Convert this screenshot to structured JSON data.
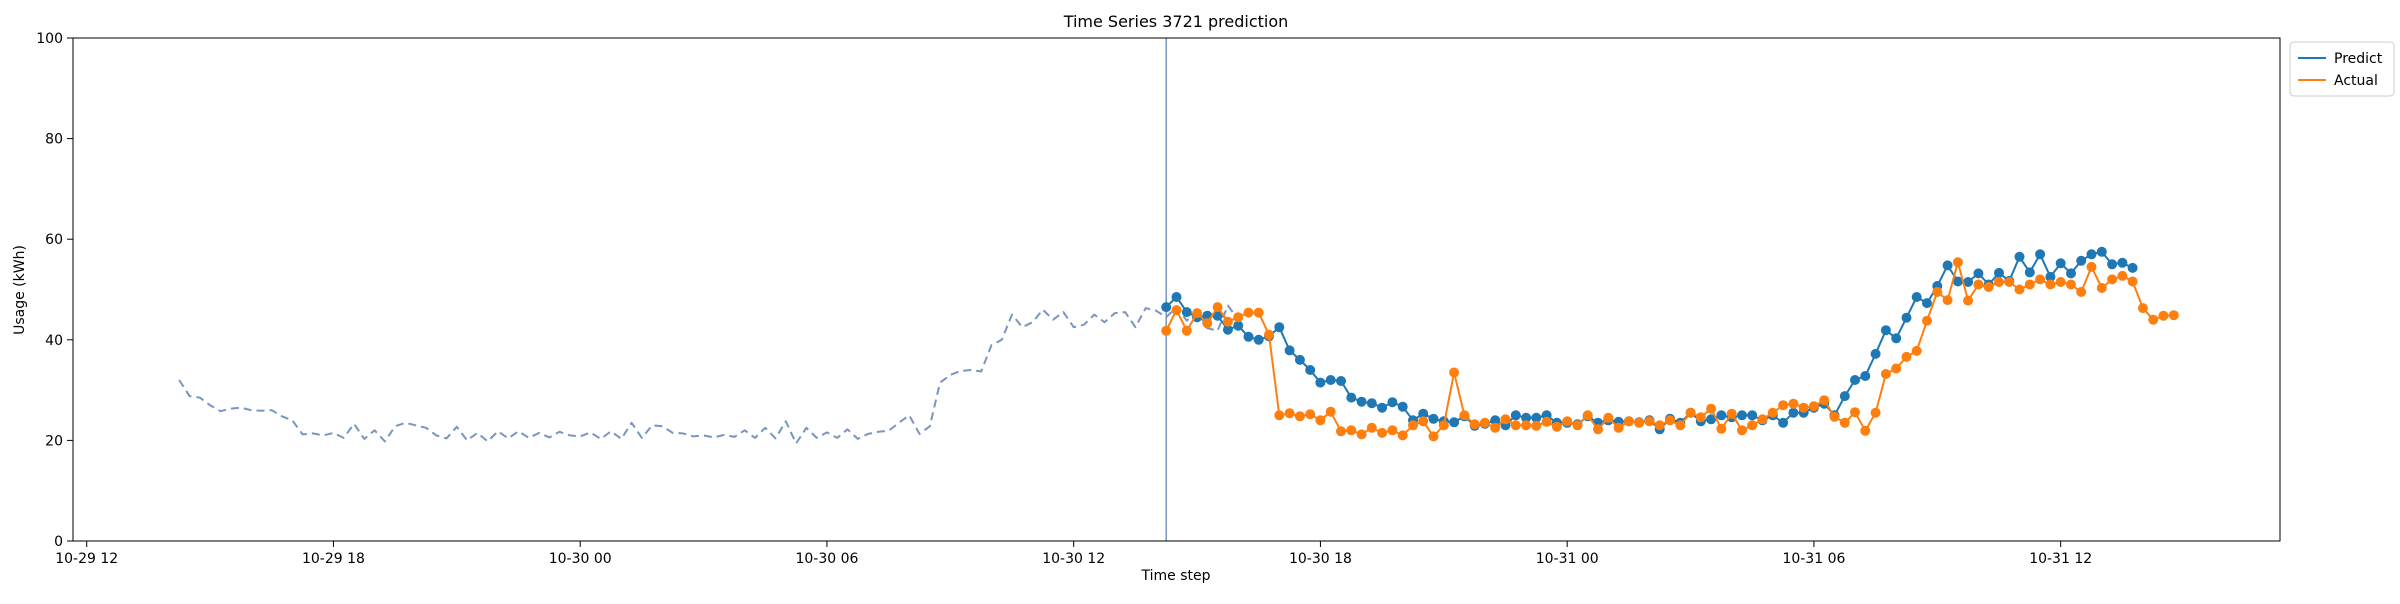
{
  "chart_data": {
    "type": "line",
    "title": "Time Series 3721 prediction",
    "xlabel": "Time step",
    "ylabel": "Usage (kWh)",
    "ylim": [
      0,
      100
    ],
    "xlim": [
      "2024-10-29T11:40",
      "2024-10-31T17:20"
    ],
    "y_ticks": [
      0,
      20,
      40,
      60,
      80,
      100
    ],
    "x_ticks": [
      {
        "value": "2024-10-29T12:00",
        "label": "10-29 12"
      },
      {
        "value": "2024-10-29T18:00",
        "label": "10-29 18"
      },
      {
        "value": "2024-10-30T00:00",
        "label": "10-30 00"
      },
      {
        "value": "2024-10-30T06:00",
        "label": "10-30 06"
      },
      {
        "value": "2024-10-30T12:00",
        "label": "10-30 12"
      },
      {
        "value": "2024-10-30T18:00",
        "label": "10-30 18"
      },
      {
        "value": "2024-10-31T00:00",
        "label": "10-31 00"
      },
      {
        "value": "2024-10-31T06:00",
        "label": "10-31 06"
      },
      {
        "value": "2024-10-31T12:00",
        "label": "10-31 12"
      }
    ],
    "grid": false,
    "legend_position": "top-right",
    "forecast_start": "2024-10-30T14:15",
    "series": [
      {
        "role": "history",
        "color": "#7896c0",
        "line_style": "dashed",
        "start": "2024-10-29T14:15",
        "step_minutes": 15,
        "values": [
          32.0,
          28.8,
          28.5,
          27.0,
          25.8,
          26.3,
          26.5,
          26.0,
          25.9,
          26.0,
          24.8,
          24.0,
          21.2,
          21.4,
          21.0,
          21.5,
          20.5,
          23.3,
          20.3,
          22.0,
          19.8,
          22.8,
          23.5,
          23.0,
          22.5,
          21.0,
          20.4,
          22.7,
          20.0,
          21.5,
          19.8,
          21.8,
          20.4,
          21.8,
          20.5,
          21.5,
          20.6,
          21.7,
          21.0,
          20.8,
          21.6,
          20.3,
          21.8,
          20.3,
          23.5,
          20.5,
          23.0,
          22.8,
          21.5,
          21.4,
          20.8,
          21.0,
          20.6,
          21.1,
          20.7,
          22.0,
          20.5,
          22.5,
          20.4,
          23.8,
          19.4,
          22.5,
          20.5,
          21.6,
          20.5,
          22.2,
          20.3,
          21.3,
          21.7,
          21.9,
          23.5,
          25.0,
          21.3,
          22.8,
          31.5,
          33.0,
          33.8,
          34.0,
          33.7,
          38.9,
          40.0,
          45.0,
          42.5,
          43.5,
          46.0,
          44.0,
          45.5,
          42.5,
          43.0,
          45.0,
          43.5,
          45.3,
          45.5,
          42.5,
          46.3,
          45.8,
          44.5,
          46.5,
          43.8,
          45.8,
          42.3,
          41.8,
          46.8,
          44.0
        ]
      },
      {
        "name": "Predict",
        "color": "#1f77b4",
        "markers": true,
        "start": "2024-10-30T14:15",
        "step_minutes": 15,
        "values": [
          46.5,
          48.5,
          45.5,
          44.5,
          44.8,
          44.8,
          42.0,
          42.8,
          40.6,
          40.0,
          40.7,
          42.5,
          37.9,
          36.0,
          34.0,
          31.5,
          32.0,
          31.8,
          28.5,
          27.7,
          27.4,
          26.5,
          27.6,
          26.7,
          24.0,
          25.3,
          24.3,
          23.8,
          23.6,
          24.8,
          22.9,
          23.3,
          24.0,
          23.0,
          25.0,
          24.5,
          24.5,
          25.0,
          23.5,
          23.5,
          23.2,
          24.8,
          23.5,
          24.0,
          23.7,
          23.8,
          23.6,
          24.0,
          22.2,
          24.3,
          23.5,
          25.5,
          23.8,
          24.2,
          25.0,
          24.6,
          25.0,
          25.0,
          24.0,
          25.0,
          23.5,
          25.5,
          25.5,
          26.5,
          27.3,
          25.0,
          28.8,
          32.0,
          32.8,
          37.2,
          41.9,
          40.3,
          44.4,
          48.5,
          47.3,
          50.7,
          54.8,
          51.6,
          51.5,
          53.2,
          51.0,
          53.3,
          51.7,
          56.5,
          53.4,
          57.0,
          52.5,
          55.2,
          53.2,
          55.7,
          57.0,
          57.5,
          55.0,
          55.3,
          54.3
        ]
      },
      {
        "name": "Actual",
        "color": "#ff7f0e",
        "markers": true,
        "start": "2024-10-30T14:15",
        "step_minutes": 15,
        "values": [
          41.8,
          45.9,
          41.8,
          45.3,
          43.3,
          46.5,
          43.6,
          44.5,
          45.4,
          45.4,
          41.0,
          25.0,
          25.4,
          24.8,
          25.2,
          24.0,
          25.7,
          21.8,
          22.0,
          21.2,
          22.5,
          21.5,
          22.0,
          21.0,
          23.0,
          23.8,
          20.8,
          23.0,
          33.5,
          25.0,
          23.2,
          23.5,
          22.5,
          24.2,
          23.0,
          23.0,
          22.9,
          23.7,
          22.7,
          23.8,
          23.0,
          25.0,
          22.2,
          24.5,
          22.5,
          23.8,
          23.5,
          23.8,
          23.0,
          24.0,
          23.0,
          25.5,
          24.6,
          26.3,
          22.3,
          25.3,
          22.0,
          23.0,
          24.2,
          25.5,
          27.0,
          27.3,
          26.5,
          26.8,
          28.0,
          24.7,
          23.5,
          25.6,
          21.9,
          25.5,
          33.2,
          34.3,
          36.6,
          37.8,
          43.8,
          49.5,
          47.9,
          55.4,
          47.8,
          51.0,
          50.5,
          51.5,
          51.5,
          50.0,
          51.0,
          52.0,
          51.0,
          51.5,
          51.0,
          49.5,
          54.5,
          50.3,
          52.0,
          52.7,
          51.6,
          46.3,
          44.0,
          44.8,
          44.9
        ]
      }
    ]
  }
}
